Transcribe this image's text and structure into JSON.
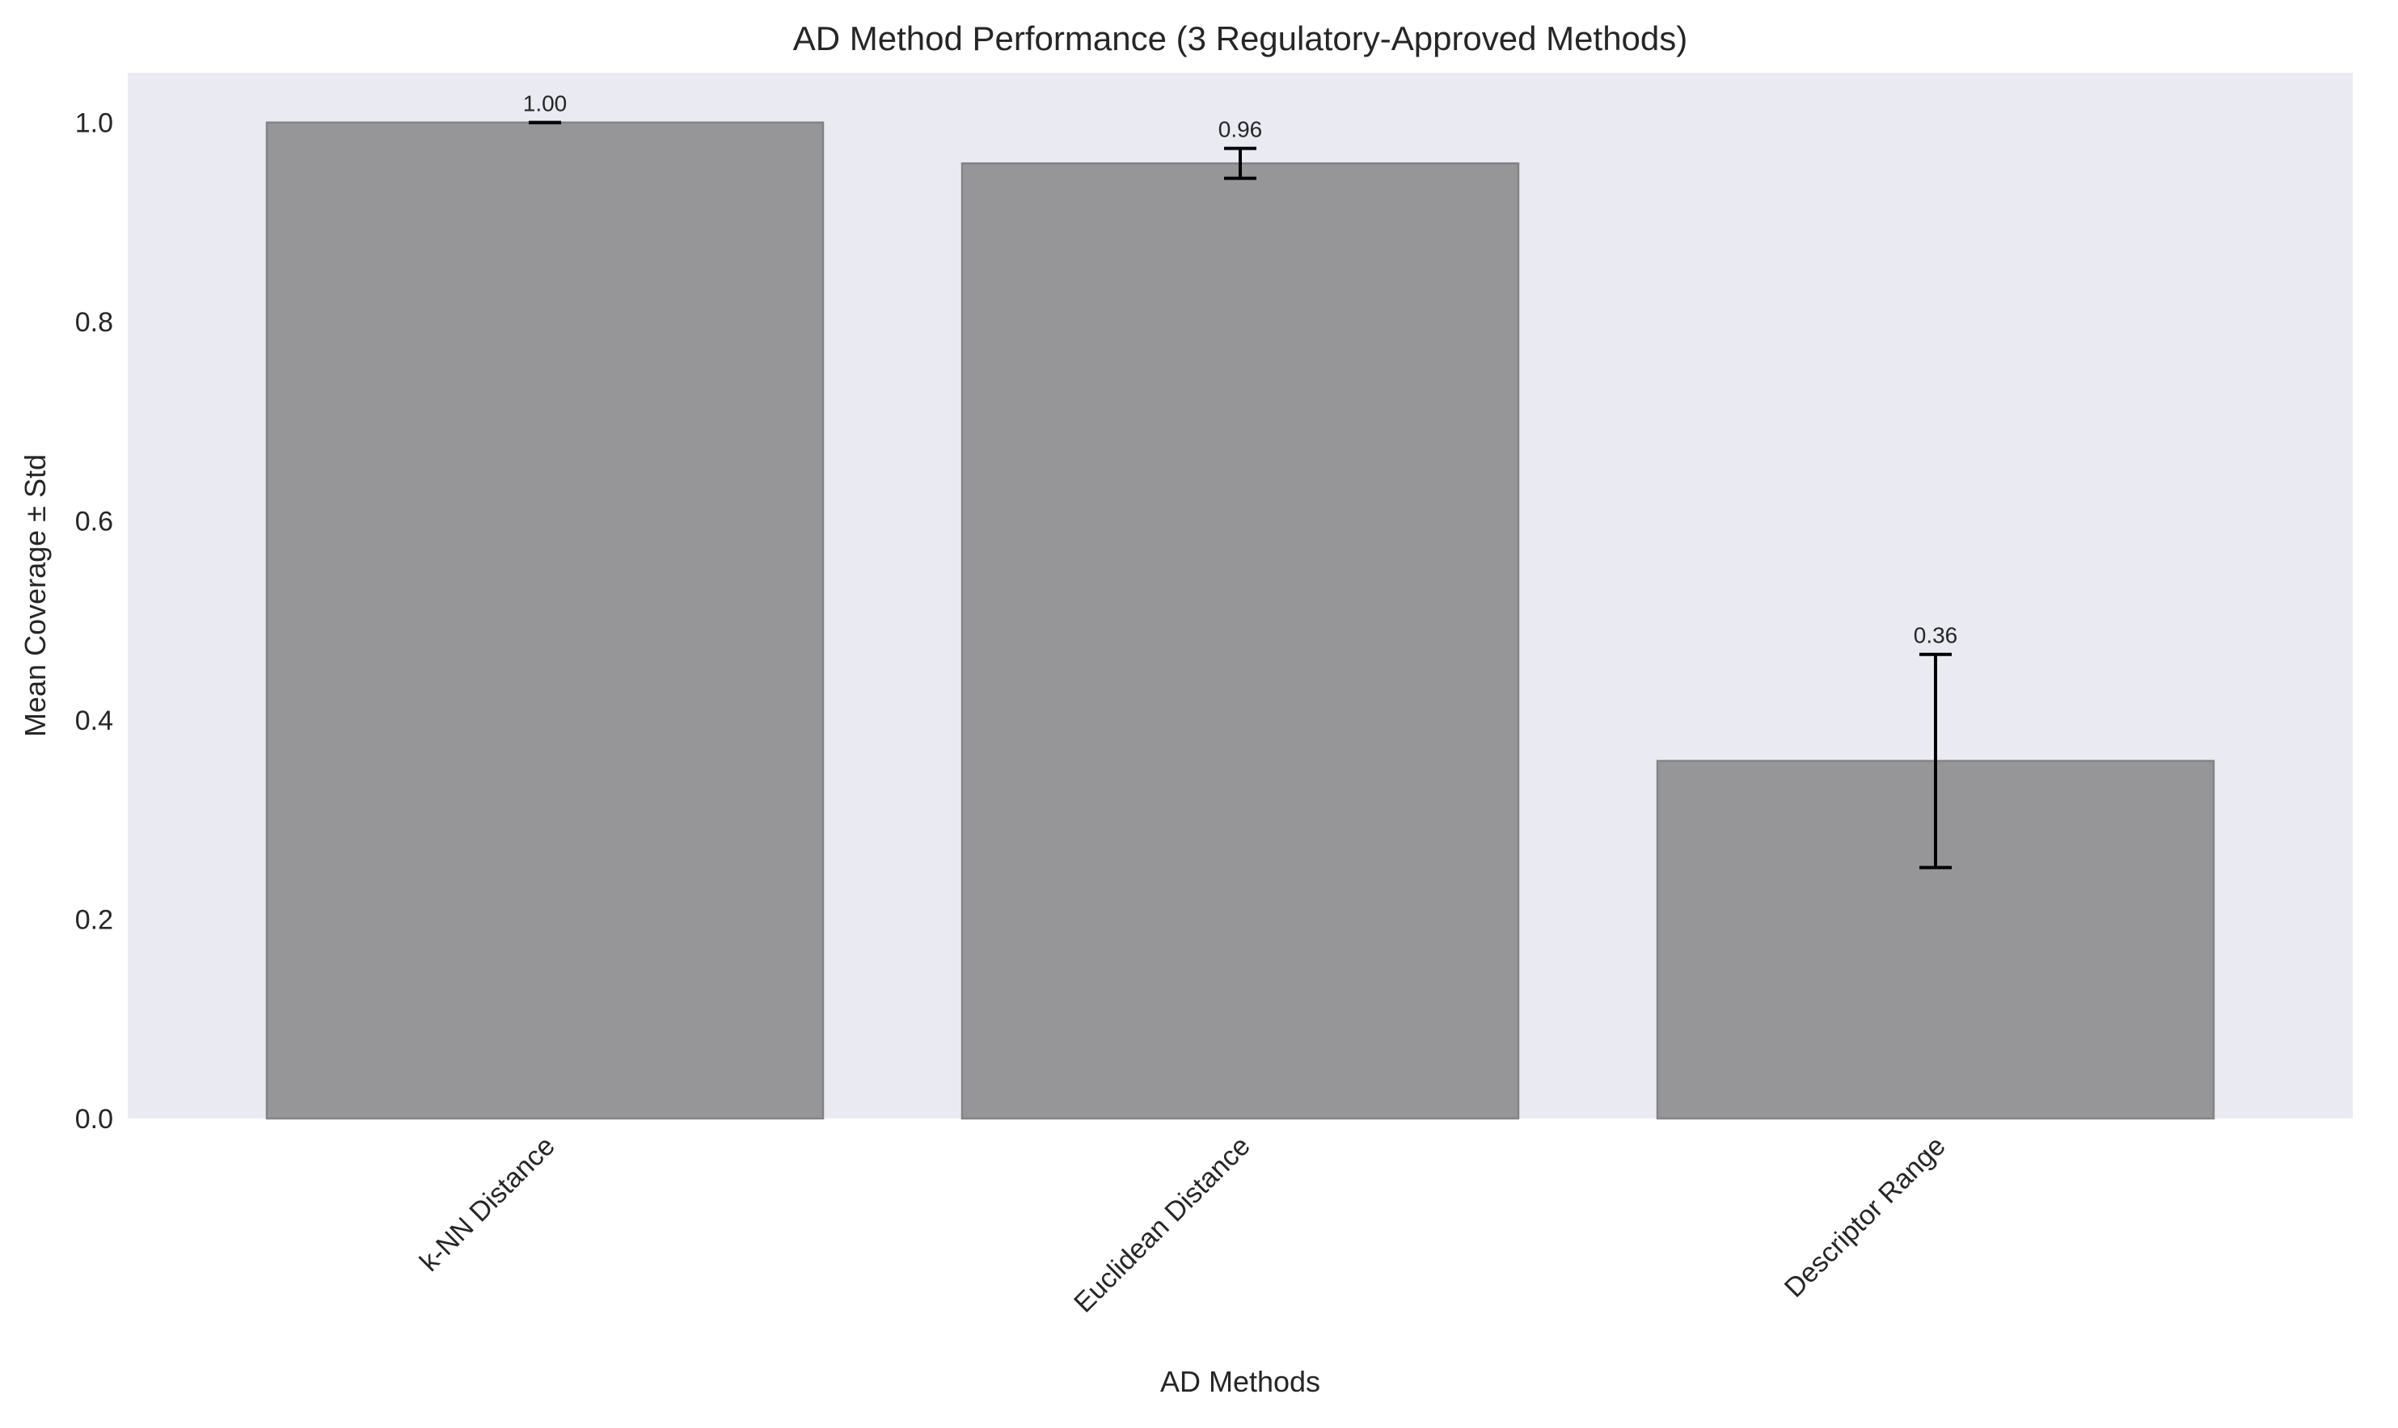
{
  "chart_data": {
    "type": "bar",
    "title": "AD Method Performance (3 Regulatory-Approved Methods)",
    "xlabel": "AD Methods",
    "ylabel": "Mean Coverage ± Std",
    "categories": [
      "k-NN Distance",
      "Euclidean Distance",
      "Descriptor Range"
    ],
    "values": [
      1.0,
      0.959,
      0.359
    ],
    "errors": [
      0.0,
      0.015,
      0.107
    ],
    "value_labels": [
      "1.00",
      "0.96",
      "0.36"
    ],
    "ylim": [
      0,
      1.05
    ],
    "yticks": [
      0.0,
      0.2,
      0.4,
      0.6,
      0.8,
      1.0
    ],
    "ytick_labels": [
      "0.0",
      "0.2",
      "0.4",
      "0.6",
      "0.8",
      "1.0"
    ],
    "grid": false,
    "colors": {
      "bar": "#969698",
      "bar_edge": "#838385",
      "plot_background": "#eaeaf2",
      "error_bar": "#000000",
      "text": "#262626"
    }
  }
}
